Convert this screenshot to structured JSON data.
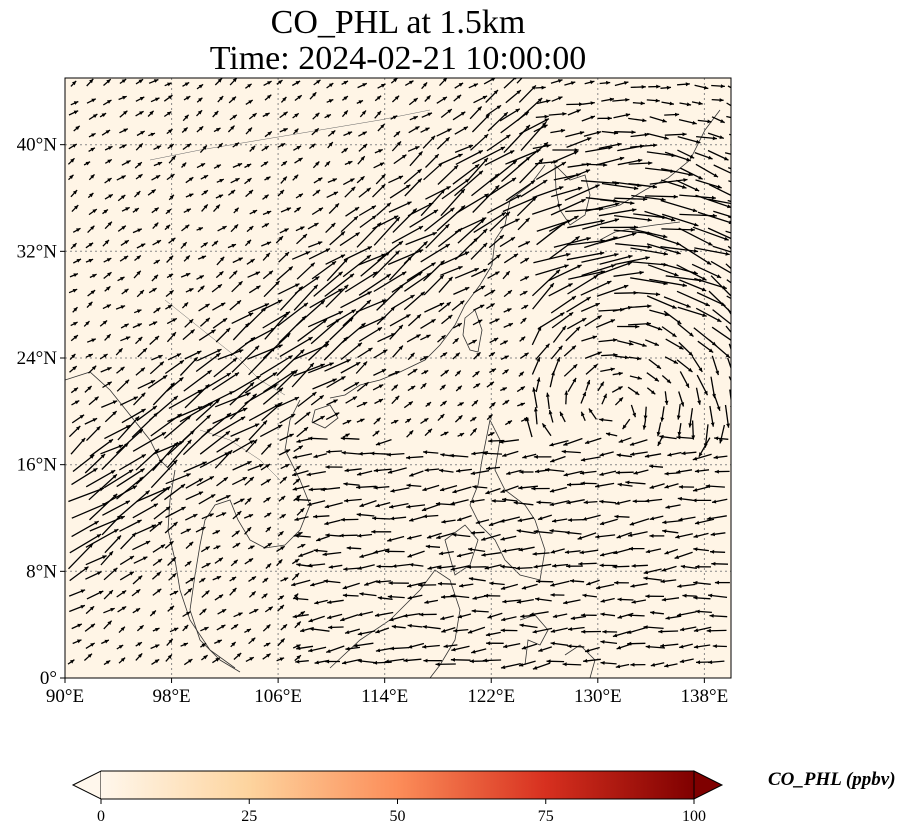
{
  "title": {
    "line1": "CO_PHL at 1.5km",
    "line2": "Time: 2024-02-21 10:00:00"
  },
  "map": {
    "projection": "PlateCarree",
    "lon_range": [
      90,
      140
    ],
    "lat_range": [
      0,
      45
    ],
    "gridlines": "dotted gray",
    "background_color": "#fff5e6",
    "x_ticks": [
      {
        "value": 90,
        "label": "90°E"
      },
      {
        "value": 98,
        "label": "98°E"
      },
      {
        "value": 106,
        "label": "106°E"
      },
      {
        "value": 114,
        "label": "114°E"
      },
      {
        "value": 122,
        "label": "122°E"
      },
      {
        "value": 130,
        "label": "130°E"
      },
      {
        "value": 138,
        "label": "138°E"
      }
    ],
    "y_ticks": [
      {
        "value": 0,
        "label": "0°"
      },
      {
        "value": 8,
        "label": "8°N"
      },
      {
        "value": 16,
        "label": "16°N"
      },
      {
        "value": 24,
        "label": "24°N"
      },
      {
        "value": 32,
        "label": "32°N"
      },
      {
        "value": 40,
        "label": "40°N"
      }
    ],
    "wind_vectors": "black quiver arrows over East and Southeast Asia"
  },
  "colorbar": {
    "label": "CO_PHL (ppbv)",
    "colormap": "OrRd",
    "range": [
      0,
      100
    ],
    "extend": "both",
    "ticks": [
      {
        "value": 0,
        "label": "0"
      },
      {
        "value": 25,
        "label": "25"
      },
      {
        "value": 50,
        "label": "50"
      },
      {
        "value": 75,
        "label": "75"
      },
      {
        "value": 100,
        "label": "100"
      }
    ],
    "colors": [
      "#fff7ec",
      "#fdd49e",
      "#fc8d59",
      "#d7301f",
      "#7f0000"
    ]
  }
}
